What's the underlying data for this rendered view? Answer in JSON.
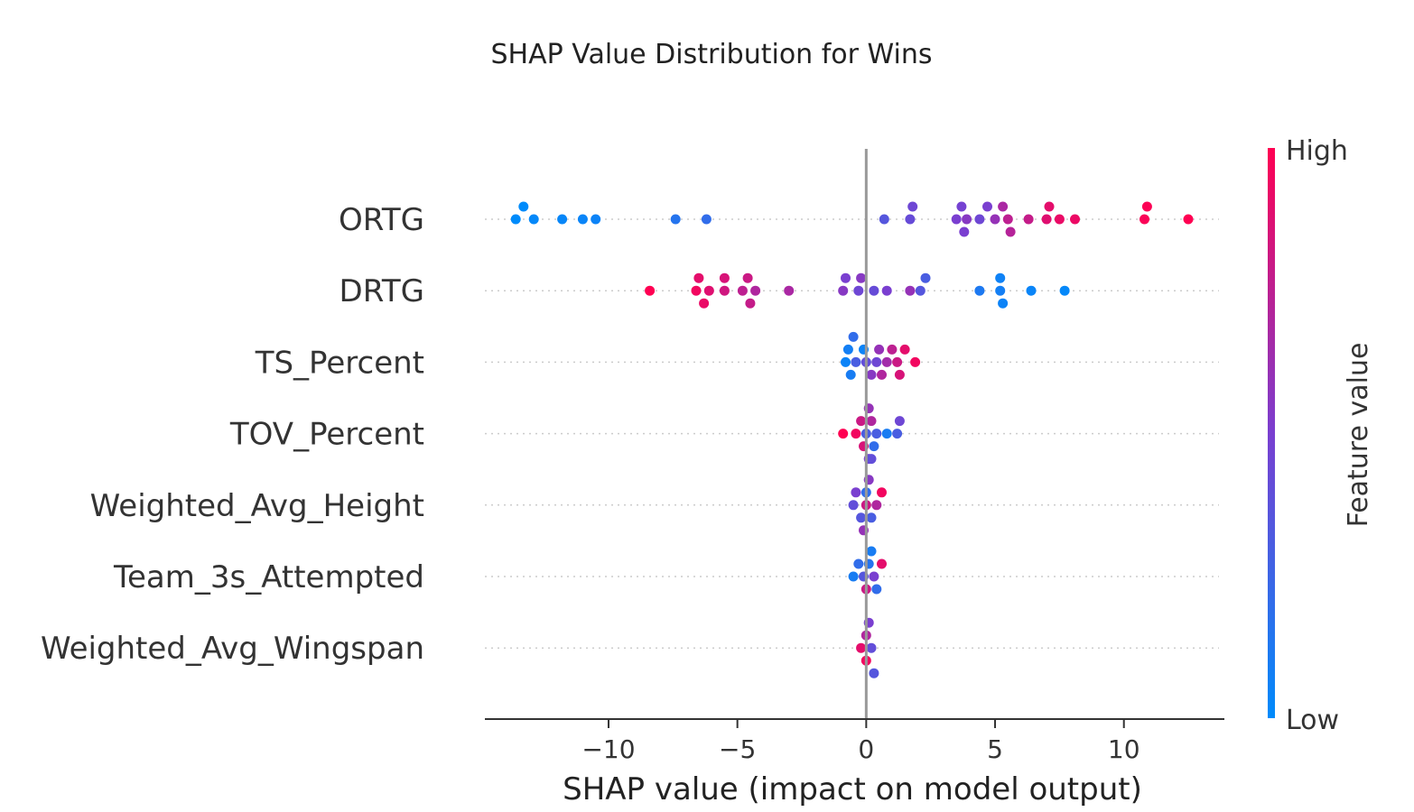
{
  "chart_data": {
    "type": "scatter",
    "title": "SHAP Value Distribution for Wins",
    "xlabel": "SHAP value (impact on model output)",
    "ylabel": "",
    "xlim": [
      -14.8,
      13.9
    ],
    "xticks": [
      -10,
      -5,
      0,
      5,
      10
    ],
    "xtick_labels": [
      "−10",
      "−5",
      "0",
      "5",
      "10"
    ],
    "colorbar": {
      "label": "Feature value",
      "high_label": "High",
      "low_label": "Low",
      "high_color": "#ff0052",
      "low_color": "#008bfb"
    },
    "grid": false,
    "features": [
      {
        "name": "ORTG",
        "points": [
          {
            "x": -13.6,
            "v": 0.0
          },
          {
            "x": -13.3,
            "v": 0.0
          },
          {
            "x": -12.9,
            "v": 0.02
          },
          {
            "x": -11.8,
            "v": 0.03
          },
          {
            "x": -11.0,
            "v": 0.04
          },
          {
            "x": -10.5,
            "v": 0.05
          },
          {
            "x": -7.4,
            "v": 0.15
          },
          {
            "x": -6.2,
            "v": 0.2
          },
          {
            "x": 0.7,
            "v": 0.35
          },
          {
            "x": 1.7,
            "v": 0.42
          },
          {
            "x": 1.8,
            "v": 0.45
          },
          {
            "x": 3.5,
            "v": 0.5
          },
          {
            "x": 3.7,
            "v": 0.48
          },
          {
            "x": 3.8,
            "v": 0.5
          },
          {
            "x": 3.9,
            "v": 0.55
          },
          {
            "x": 4.4,
            "v": 0.45
          },
          {
            "x": 4.7,
            "v": 0.5
          },
          {
            "x": 5.0,
            "v": 0.6
          },
          {
            "x": 5.3,
            "v": 0.68
          },
          {
            "x": 5.5,
            "v": 0.75
          },
          {
            "x": 5.6,
            "v": 0.72
          },
          {
            "x": 6.3,
            "v": 0.78
          },
          {
            "x": 7.0,
            "v": 0.88
          },
          {
            "x": 7.1,
            "v": 0.9
          },
          {
            "x": 7.5,
            "v": 0.92
          },
          {
            "x": 8.1,
            "v": 0.93
          },
          {
            "x": 10.8,
            "v": 0.98
          },
          {
            "x": 10.9,
            "v": 0.99
          },
          {
            "x": 12.5,
            "v": 1.0
          }
        ]
      },
      {
        "name": "DRTG",
        "points": [
          {
            "x": -8.4,
            "v": 1.0
          },
          {
            "x": -6.6,
            "v": 0.95
          },
          {
            "x": -6.5,
            "v": 0.9
          },
          {
            "x": -6.3,
            "v": 0.92
          },
          {
            "x": -6.1,
            "v": 0.88
          },
          {
            "x": -5.5,
            "v": 0.82
          },
          {
            "x": -5.5,
            "v": 0.85
          },
          {
            "x": -4.8,
            "v": 0.75
          },
          {
            "x": -4.6,
            "v": 0.8
          },
          {
            "x": -4.5,
            "v": 0.78
          },
          {
            "x": -4.3,
            "v": 0.7
          },
          {
            "x": -3.0,
            "v": 0.68
          },
          {
            "x": -0.9,
            "v": 0.55
          },
          {
            "x": -0.8,
            "v": 0.5
          },
          {
            "x": -0.3,
            "v": 0.45
          },
          {
            "x": -0.2,
            "v": 0.55
          },
          {
            "x": 0.3,
            "v": 0.42
          },
          {
            "x": 0.8,
            "v": 0.5
          },
          {
            "x": 1.7,
            "v": 0.6
          },
          {
            "x": 2.1,
            "v": 0.35
          },
          {
            "x": 2.3,
            "v": 0.3
          },
          {
            "x": 4.4,
            "v": 0.12
          },
          {
            "x": 5.2,
            "v": 0.08
          },
          {
            "x": 5.2,
            "v": 0.06
          },
          {
            "x": 5.3,
            "v": 0.05
          },
          {
            "x": 6.4,
            "v": 0.04
          },
          {
            "x": 7.7,
            "v": 0.02
          }
        ]
      },
      {
        "name": "TS_Percent",
        "points": [
          {
            "x": -0.8,
            "v": 0.05
          },
          {
            "x": -0.7,
            "v": 0.08
          },
          {
            "x": -0.6,
            "v": 0.1
          },
          {
            "x": -0.5,
            "v": 0.2
          },
          {
            "x": -0.4,
            "v": 0.3
          },
          {
            "x": -0.1,
            "v": 0.05
          },
          {
            "x": 0.0,
            "v": 0.4
          },
          {
            "x": 0.2,
            "v": 0.55
          },
          {
            "x": 0.4,
            "v": 0.45
          },
          {
            "x": 0.5,
            "v": 0.6
          },
          {
            "x": 0.6,
            "v": 0.7
          },
          {
            "x": 0.8,
            "v": 0.65
          },
          {
            "x": 1.0,
            "v": 0.75
          },
          {
            "x": 1.2,
            "v": 0.8
          },
          {
            "x": 1.3,
            "v": 0.85
          },
          {
            "x": 1.5,
            "v": 0.9
          },
          {
            "x": 1.9,
            "v": 0.95
          }
        ]
      },
      {
        "name": "TOV_Percent",
        "points": [
          {
            "x": -0.9,
            "v": 1.0
          },
          {
            "x": -0.4,
            "v": 0.95
          },
          {
            "x": -0.2,
            "v": 0.8
          },
          {
            "x": -0.1,
            "v": 0.85
          },
          {
            "x": 0.0,
            "v": 0.3
          },
          {
            "x": 0.1,
            "v": 0.6
          },
          {
            "x": 0.1,
            "v": 0.5
          },
          {
            "x": 0.2,
            "v": 0.7
          },
          {
            "x": 0.3,
            "v": 0.2
          },
          {
            "x": 0.4,
            "v": 0.3
          },
          {
            "x": 0.8,
            "v": 0.1
          },
          {
            "x": 1.2,
            "v": 0.3
          },
          {
            "x": 1.3,
            "v": 0.45
          },
          {
            "x": 0.2,
            "v": 0.4
          }
        ]
      },
      {
        "name": "Weighted_Avg_Height",
        "points": [
          {
            "x": -0.5,
            "v": 0.4
          },
          {
            "x": -0.4,
            "v": 0.5
          },
          {
            "x": -0.2,
            "v": 0.35
          },
          {
            "x": 0.0,
            "v": 0.8
          },
          {
            "x": 0.0,
            "v": 0.2
          },
          {
            "x": 0.1,
            "v": 0.55
          },
          {
            "x": 0.2,
            "v": 0.3
          },
          {
            "x": 0.4,
            "v": 0.7
          },
          {
            "x": 0.6,
            "v": 0.95
          },
          {
            "x": -0.1,
            "v": 0.6
          }
        ]
      },
      {
        "name": "Team_3s_Attempted",
        "points": [
          {
            "x": -0.5,
            "v": 0.1
          },
          {
            "x": -0.3,
            "v": 0.2
          },
          {
            "x": -0.1,
            "v": 0.35
          },
          {
            "x": 0.0,
            "v": 0.8
          },
          {
            "x": 0.1,
            "v": 0.15
          },
          {
            "x": 0.2,
            "v": 0.1
          },
          {
            "x": 0.3,
            "v": 0.5
          },
          {
            "x": 0.4,
            "v": 0.2
          },
          {
            "x": 0.6,
            "v": 0.9
          }
        ]
      },
      {
        "name": "Weighted_Avg_Wingspan",
        "points": [
          {
            "x": -0.2,
            "v": 0.9
          },
          {
            "x": 0.0,
            "v": 0.7
          },
          {
            "x": 0.0,
            "v": 0.95
          },
          {
            "x": 0.1,
            "v": 0.5
          },
          {
            "x": 0.2,
            "v": 0.4
          },
          {
            "x": 0.3,
            "v": 0.35
          }
        ]
      }
    ]
  }
}
